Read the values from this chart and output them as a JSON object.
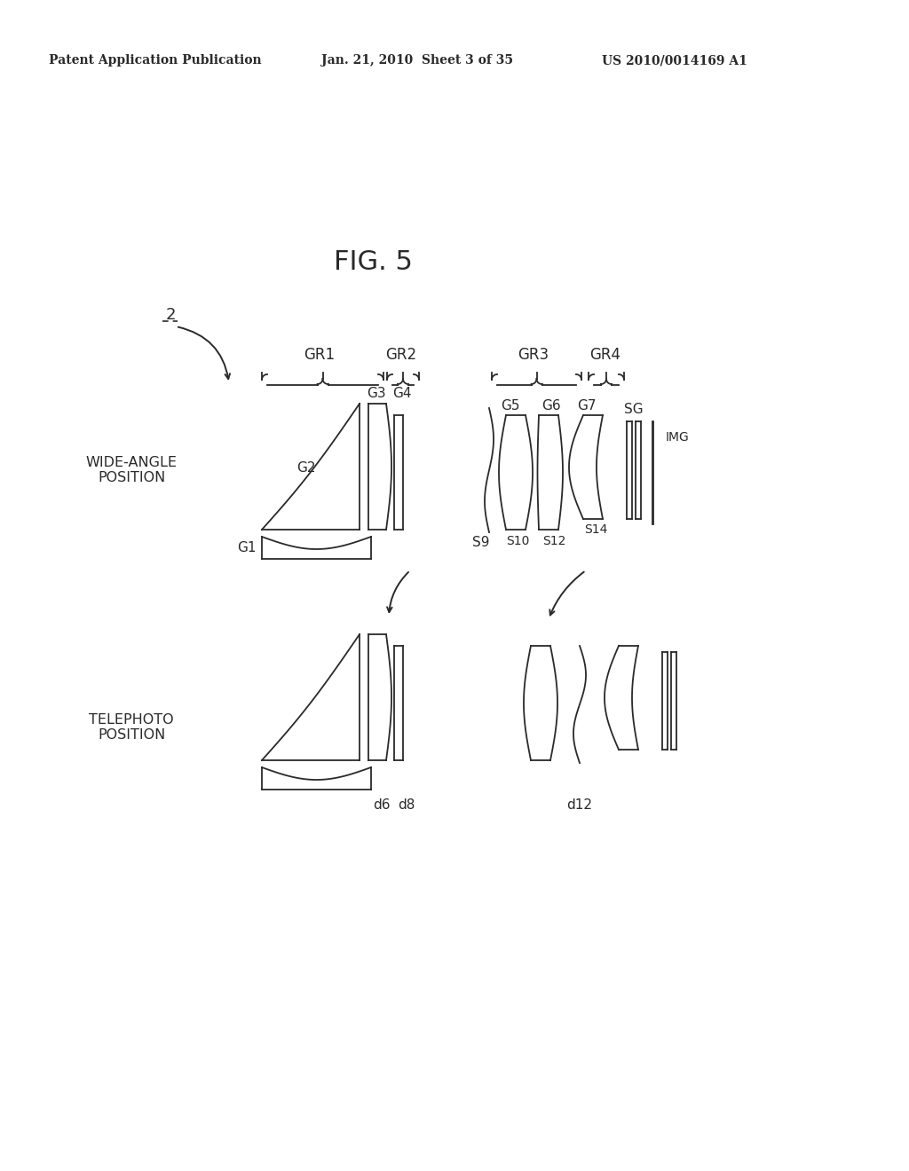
{
  "bg_color": "#ffffff",
  "line_color": "#2a2a2a",
  "patent_header_left": "Patent Application Publication",
  "patent_header_mid": "Jan. 21, 2010  Sheet 3 of 35",
  "patent_header_right": "US 2010/0014169 A1",
  "fig_title": "FIG. 5",
  "label_2": "2",
  "wide_angle": "WIDE-ANGLE\nPOSITION",
  "telephoto": "TELEPHOTO\nPOSITION",
  "gr1": "GR1",
  "gr2": "GR2",
  "gr3": "GR3",
  "gr4": "GR4",
  "g1": "G1",
  "g2": "G2",
  "g3": "G3",
  "g4": "G4",
  "g5": "G5",
  "g6": "G6",
  "g7": "G7",
  "sg": "SG",
  "img": "IMG",
  "s9": "S9",
  "s10": "S10",
  "s12": "S12",
  "s14": "S14",
  "d6": "d6",
  "d8": "d8",
  "d12": "d12"
}
